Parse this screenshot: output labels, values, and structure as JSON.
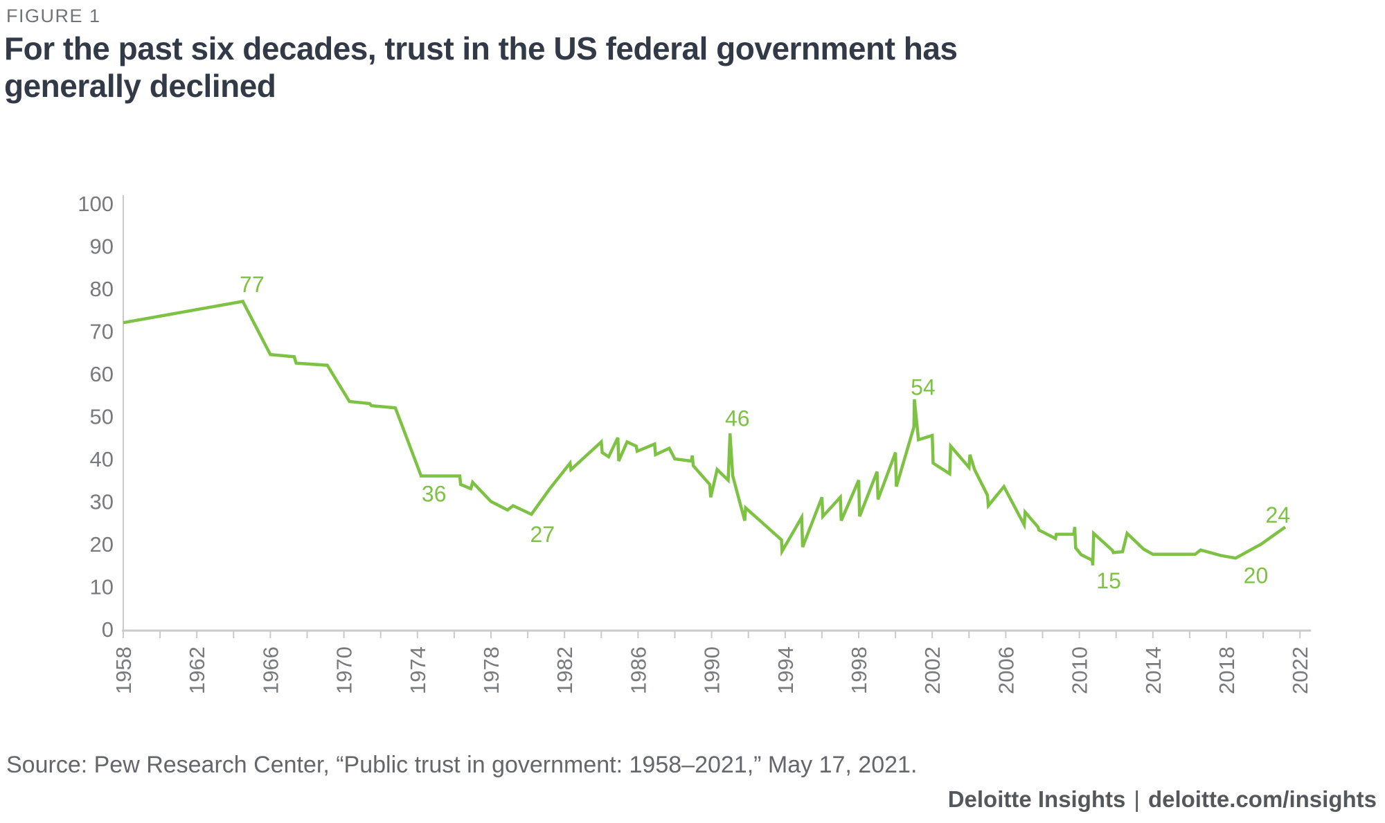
{
  "figure_label": "FIGURE 1",
  "title": {
    "line1": "For the past six decades, trust in the US federal government has",
    "line2": "generally declined"
  },
  "source_text": "Source: Pew Research Center, “Public trust in government: 1958–2021,” May 17, 2021.",
  "footer": {
    "brand": "Deloitte Insights",
    "separator": "|",
    "url": "deloitte.com/insights"
  },
  "colors": {
    "line": "#7dc242",
    "point_label": "#7dc242",
    "axis": "#c9cacc",
    "tick_text": "#77797d",
    "title_text": "#333a47",
    "figure_text": "#717477",
    "source_text": "#63666b",
    "footer_text": "#54575b"
  },
  "chart_data": {
    "type": "line",
    "title": "For the past six decades, trust in the US federal government has generally declined",
    "xlabel": "",
    "ylabel": "",
    "grid": false,
    "legend": false,
    "x_axis": {
      "min": 1958,
      "max": 2022,
      "tick_step": 2,
      "label_step": 4,
      "labels": [
        1958,
        1962,
        1966,
        1970,
        1974,
        1978,
        1982,
        1986,
        1990,
        1994,
        1998,
        2002,
        2006,
        2010,
        2014,
        2018,
        2022
      ]
    },
    "y_axis": {
      "min": 0,
      "max": 100,
      "tick_step": 10,
      "labels": [
        0,
        10,
        20,
        30,
        40,
        50,
        60,
        70,
        80,
        90,
        100
      ]
    },
    "series": [
      {
        "points": [
          [
            1958.0,
            72
          ],
          [
            1964.5,
            77
          ],
          [
            1966.0,
            64.5
          ],
          [
            1967.3,
            64
          ],
          [
            1967.4,
            62.5
          ],
          [
            1969.1,
            62
          ],
          [
            1970.3,
            53.5
          ],
          [
            1971.4,
            53
          ],
          [
            1971.5,
            52.5
          ],
          [
            1972.8,
            52
          ],
          [
            1974.2,
            36
          ],
          [
            1976.3,
            36
          ],
          [
            1976.35,
            34
          ],
          [
            1976.9,
            33
          ],
          [
            1977.0,
            34.5
          ],
          [
            1978.0,
            30
          ],
          [
            1978.9,
            28
          ],
          [
            1979.2,
            29
          ],
          [
            1980.2,
            27
          ],
          [
            1981.2,
            33
          ],
          [
            1982.3,
            39
          ],
          [
            1982.35,
            37.5
          ],
          [
            1984.0,
            44
          ],
          [
            1984.05,
            41.5
          ],
          [
            1984.4,
            40.5
          ],
          [
            1984.9,
            45
          ],
          [
            1984.95,
            39.5
          ],
          [
            1985.4,
            44
          ],
          [
            1985.9,
            43
          ],
          [
            1985.95,
            41.8
          ],
          [
            1986.9,
            43.5
          ],
          [
            1986.95,
            41
          ],
          [
            1987.7,
            42.5
          ],
          [
            1988.0,
            40
          ],
          [
            1988.9,
            39.5
          ],
          [
            1988.95,
            40.8
          ],
          [
            1989.0,
            38.4
          ],
          [
            1989.9,
            34
          ],
          [
            1989.95,
            31
          ],
          [
            1990.3,
            37.5
          ],
          [
            1990.9,
            35
          ],
          [
            1991.0,
            46
          ],
          [
            1991.15,
            36
          ],
          [
            1991.8,
            25.5
          ],
          [
            1991.85,
            28.5
          ],
          [
            1993.8,
            21
          ],
          [
            1993.83,
            18.3
          ],
          [
            1994.9,
            26.3
          ],
          [
            1994.95,
            19.3
          ],
          [
            1996.0,
            31
          ],
          [
            1996.05,
            26.5
          ],
          [
            1997.0,
            31
          ],
          [
            1997.05,
            25.5
          ],
          [
            1998.0,
            35
          ],
          [
            1998.05,
            26.5
          ],
          [
            1999.0,
            37
          ],
          [
            1999.05,
            30.5
          ],
          [
            2000.0,
            41.5
          ],
          [
            2000.05,
            33.5
          ],
          [
            2001.0,
            47.5
          ],
          [
            2001.03,
            54
          ],
          [
            2001.25,
            44.5
          ],
          [
            2002.0,
            45.5
          ],
          [
            2002.05,
            39
          ],
          [
            2002.95,
            36.5
          ],
          [
            2003.0,
            43
          ],
          [
            2004.0,
            38
          ],
          [
            2004.05,
            41
          ],
          [
            2004.3,
            37.5
          ],
          [
            2005.0,
            31.5
          ],
          [
            2005.05,
            29
          ],
          [
            2005.9,
            33.5
          ],
          [
            2007.0,
            24.5
          ],
          [
            2007.05,
            27.5
          ],
          [
            2007.75,
            24
          ],
          [
            2007.8,
            23.3
          ],
          [
            2008.7,
            21.3
          ],
          [
            2008.75,
            22.3
          ],
          [
            2009.7,
            22.3
          ],
          [
            2009.75,
            24
          ],
          [
            2009.8,
            19.1
          ],
          [
            2010.1,
            17.5
          ],
          [
            2010.7,
            16.2
          ],
          [
            2010.73,
            15
          ],
          [
            2010.78,
            22.5
          ],
          [
            2011.8,
            18.5
          ],
          [
            2011.85,
            18
          ],
          [
            2012.35,
            18.2
          ],
          [
            2012.6,
            22.5
          ],
          [
            2013.5,
            18.8
          ],
          [
            2014.0,
            17.6
          ],
          [
            2016.3,
            17.6
          ],
          [
            2016.6,
            18.6
          ],
          [
            2017.7,
            17.3
          ],
          [
            2018.5,
            16.7
          ],
          [
            2019.9,
            20
          ],
          [
            2021.2,
            24
          ]
        ]
      }
    ],
    "point_labels": [
      {
        "text": "77",
        "year": 1965.0,
        "value": 81
      },
      {
        "text": "36",
        "year": 1974.9,
        "value": 31.8
      },
      {
        "text": "27",
        "year": 1980.8,
        "value": 22.3
      },
      {
        "text": "46",
        "year": 1991.4,
        "value": 49.5
      },
      {
        "text": "54",
        "year": 2001.5,
        "value": 56.8
      },
      {
        "text": "15",
        "year": 2011.6,
        "value": 11.4
      },
      {
        "text": "20",
        "year": 2019.6,
        "value": 12.6
      },
      {
        "text": "24",
        "year": 2020.8,
        "value": 26.8
      }
    ]
  }
}
